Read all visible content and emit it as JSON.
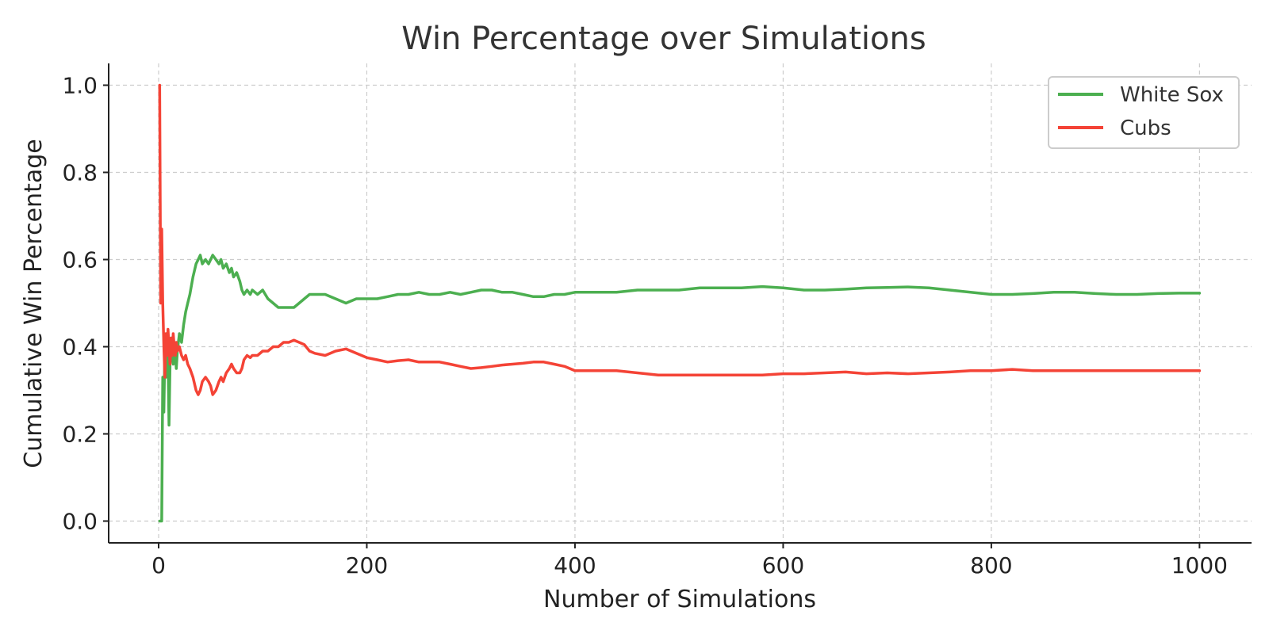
{
  "chart_data": {
    "type": "line",
    "title": "Win Percentage over Simulations",
    "xlabel": "Number of Simulations",
    "ylabel": "Cumulative Win Percentage",
    "xlim": [
      -48,
      1050
    ],
    "ylim": [
      -0.05,
      1.05
    ],
    "xticks": [
      0,
      200,
      400,
      600,
      800,
      1000
    ],
    "xtick_labels": [
      "0",
      "200",
      "400",
      "600",
      "800",
      "1000"
    ],
    "yticks": [
      0.0,
      0.2,
      0.4,
      0.6,
      0.8,
      1.0
    ],
    "ytick_labels": [
      "0.0",
      "0.2",
      "0.4",
      "0.6",
      "0.8",
      "1.0"
    ],
    "grid": true,
    "legend_position": "top-right",
    "series": [
      {
        "name": "White Sox",
        "color": "#4caf50",
        "x": [
          1,
          2,
          3,
          4,
          5,
          6,
          7,
          8,
          9,
          10,
          11,
          12,
          13,
          14,
          15,
          16,
          17,
          18,
          20,
          22,
          24,
          26,
          28,
          30,
          33,
          36,
          38,
          40,
          42,
          45,
          48,
          50,
          52,
          55,
          58,
          60,
          62,
          65,
          68,
          70,
          72,
          75,
          78,
          80,
          82,
          85,
          88,
          90,
          95,
          100,
          105,
          110,
          115,
          120,
          125,
          130,
          135,
          140,
          145,
          150,
          160,
          170,
          180,
          190,
          200,
          210,
          220,
          230,
          240,
          250,
          260,
          270,
          280,
          290,
          300,
          310,
          320,
          330,
          340,
          350,
          360,
          370,
          380,
          390,
          400,
          420,
          440,
          460,
          480,
          500,
          520,
          540,
          560,
          580,
          600,
          620,
          640,
          660,
          680,
          700,
          720,
          740,
          760,
          780,
          800,
          820,
          840,
          860,
          880,
          900,
          920,
          940,
          960,
          980,
          1000
        ],
        "y": [
          0.0,
          0.0,
          0.0,
          0.33,
          0.25,
          0.4,
          0.33,
          0.43,
          0.38,
          0.22,
          0.36,
          0.42,
          0.38,
          0.36,
          0.4,
          0.38,
          0.35,
          0.39,
          0.43,
          0.41,
          0.45,
          0.48,
          0.5,
          0.52,
          0.56,
          0.59,
          0.6,
          0.61,
          0.59,
          0.6,
          0.59,
          0.6,
          0.61,
          0.6,
          0.59,
          0.6,
          0.58,
          0.59,
          0.57,
          0.58,
          0.56,
          0.57,
          0.55,
          0.53,
          0.52,
          0.53,
          0.52,
          0.53,
          0.52,
          0.53,
          0.51,
          0.5,
          0.49,
          0.49,
          0.49,
          0.49,
          0.5,
          0.51,
          0.52,
          0.52,
          0.52,
          0.51,
          0.5,
          0.51,
          0.51,
          0.51,
          0.515,
          0.52,
          0.52,
          0.525,
          0.52,
          0.52,
          0.525,
          0.52,
          0.525,
          0.53,
          0.53,
          0.525,
          0.525,
          0.52,
          0.515,
          0.515,
          0.52,
          0.52,
          0.525,
          0.525,
          0.525,
          0.53,
          0.53,
          0.53,
          0.535,
          0.535,
          0.535,
          0.538,
          0.535,
          0.53,
          0.53,
          0.532,
          0.535,
          0.536,
          0.537,
          0.535,
          0.53,
          0.525,
          0.52,
          0.52,
          0.522,
          0.525,
          0.525,
          0.522,
          0.52,
          0.52,
          0.522,
          0.523,
          0.523
        ]
      },
      {
        "name": "Cubs",
        "color": "#f44336",
        "x": [
          1,
          2,
          3,
          4,
          5,
          6,
          7,
          8,
          9,
          10,
          11,
          12,
          13,
          14,
          15,
          16,
          17,
          18,
          20,
          22,
          24,
          26,
          28,
          30,
          33,
          36,
          38,
          40,
          42,
          45,
          48,
          50,
          52,
          55,
          58,
          60,
          62,
          65,
          68,
          70,
          72,
          75,
          78,
          80,
          82,
          85,
          88,
          90,
          95,
          100,
          105,
          110,
          115,
          120,
          125,
          130,
          135,
          140,
          145,
          150,
          160,
          170,
          180,
          190,
          200,
          210,
          220,
          230,
          240,
          250,
          260,
          270,
          280,
          290,
          300,
          310,
          320,
          330,
          340,
          350,
          360,
          370,
          380,
          390,
          400,
          420,
          440,
          460,
          480,
          500,
          520,
          540,
          560,
          580,
          600,
          620,
          640,
          660,
          680,
          700,
          720,
          740,
          760,
          780,
          800,
          820,
          840,
          860,
          880,
          900,
          920,
          940,
          960,
          980,
          1000
        ],
        "y": [
          1.0,
          0.5,
          0.67,
          0.5,
          0.4,
          0.33,
          0.43,
          0.38,
          0.44,
          0.4,
          0.36,
          0.42,
          0.38,
          0.43,
          0.4,
          0.38,
          0.41,
          0.39,
          0.4,
          0.38,
          0.37,
          0.38,
          0.36,
          0.35,
          0.33,
          0.3,
          0.29,
          0.3,
          0.32,
          0.33,
          0.32,
          0.31,
          0.29,
          0.3,
          0.32,
          0.33,
          0.32,
          0.34,
          0.35,
          0.36,
          0.35,
          0.34,
          0.34,
          0.35,
          0.37,
          0.38,
          0.375,
          0.38,
          0.38,
          0.39,
          0.39,
          0.4,
          0.4,
          0.41,
          0.41,
          0.415,
          0.41,
          0.405,
          0.39,
          0.385,
          0.38,
          0.39,
          0.395,
          0.385,
          0.375,
          0.37,
          0.365,
          0.368,
          0.37,
          0.365,
          0.365,
          0.365,
          0.36,
          0.355,
          0.35,
          0.352,
          0.355,
          0.358,
          0.36,
          0.362,
          0.365,
          0.365,
          0.36,
          0.355,
          0.345,
          0.345,
          0.345,
          0.34,
          0.335,
          0.335,
          0.335,
          0.335,
          0.335,
          0.335,
          0.338,
          0.338,
          0.34,
          0.342,
          0.338,
          0.34,
          0.338,
          0.34,
          0.342,
          0.345,
          0.345,
          0.348,
          0.345,
          0.345,
          0.345,
          0.345,
          0.345,
          0.345,
          0.345,
          0.345,
          0.345
        ]
      }
    ]
  }
}
